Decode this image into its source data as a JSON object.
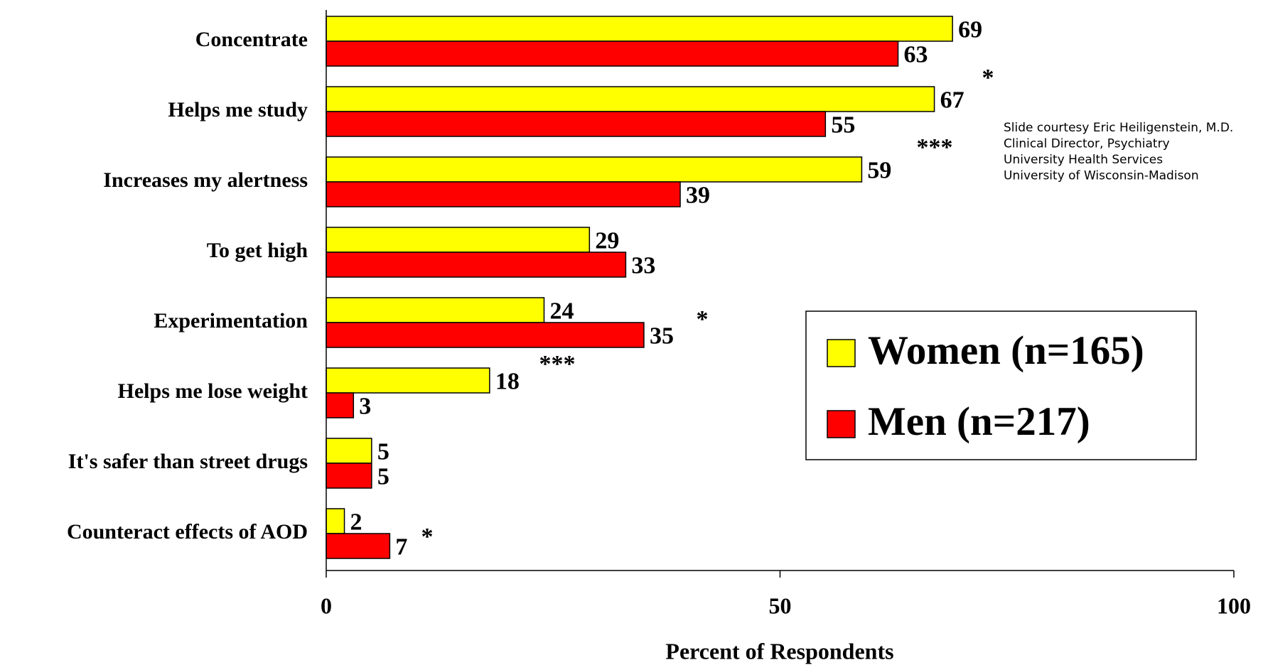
{
  "chart_data": {
    "type": "bar",
    "orientation": "horizontal",
    "categories": [
      "Concentrate",
      "Helps me study",
      "Increases my alertness",
      "To get high",
      "Experimentation",
      "Helps me lose weight",
      "It's safer than street drugs",
      "Counteract effects of AOD"
    ],
    "series": [
      {
        "name": "Women (n=165)",
        "color": "#ffff00",
        "values": [
          69,
          67,
          59,
          29,
          24,
          18,
          5,
          2
        ]
      },
      {
        "name": "Men (n=217)",
        "color": "#ff0000",
        "values": [
          63,
          55,
          39,
          33,
          35,
          3,
          5,
          7
        ]
      }
    ],
    "xlim": [
      0,
      100
    ],
    "xticks": [
      0,
      50,
      100
    ],
    "x_label": "Percent of Respondents",
    "legend": "right",
    "annotations": [
      "*",
      "***",
      "*",
      "***",
      "*"
    ],
    "note": [
      "Slide courtesy  Eric Heiligenstein, M.D.",
      "Clinical Director, Psychiatry",
      "University Health Services",
      "University of Wisconsin-Madison"
    ]
  }
}
